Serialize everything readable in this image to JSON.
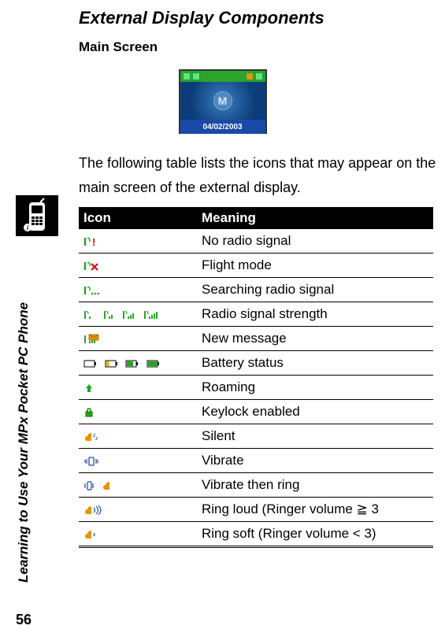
{
  "heading1": "External Display Components",
  "heading2": "Main Screen",
  "screenshot_date": "04/02/2003",
  "body_text": "The following table lists the icons that may appear on the main screen of the external display.",
  "sidebar_chapter": "Learning to Use Your MPx Pocket PC Phone",
  "page_number": "56",
  "table": {
    "col_header_left": "Icon",
    "col_header_right": "Meaning",
    "rows": [
      {
        "meaning": "No radio signal"
      },
      {
        "meaning": "Flight mode"
      },
      {
        "meaning": "Searching radio signal"
      },
      {
        "meaning": "Radio signal strength"
      },
      {
        "meaning": "New message"
      },
      {
        "meaning": "Battery status"
      },
      {
        "meaning": "Roaming"
      },
      {
        "meaning": "Keylock enabled"
      },
      {
        "meaning": "Silent"
      },
      {
        "meaning": "Vibrate"
      },
      {
        "meaning": "Vibrate then ring"
      },
      {
        "meaning": "Ring loud (Ringer volume  ≧ 3"
      },
      {
        "meaning": "Ring soft (Ringer volume < 3)"
      }
    ]
  },
  "colors": {
    "header_bg": "#000000",
    "header_text": "#ffffff",
    "row_border": "#000000",
    "green": "#2aa52a",
    "battery_green": "#1aaa1a",
    "battery_yellow": "#d8c400",
    "battery_empty": "#ffffff",
    "blue": "#1a4aa8",
    "orange": "#e69400"
  }
}
